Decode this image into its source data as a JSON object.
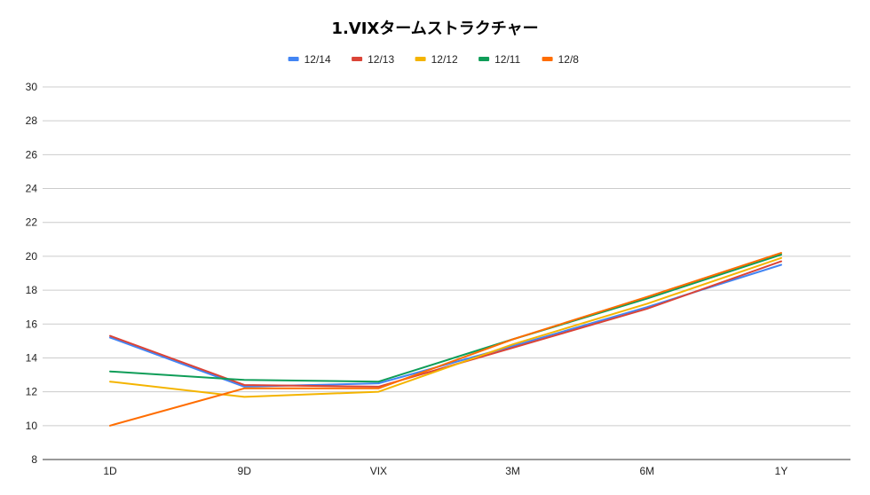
{
  "chart_data": {
    "type": "line",
    "title": "1.VIXタームストラクチャー",
    "xlabel": "",
    "ylabel": "",
    "categories": [
      "1D",
      "9D",
      "VIX",
      "3M",
      "6M",
      "1Y"
    ],
    "ylim": [
      8,
      30
    ],
    "yticks": [
      8,
      10,
      12,
      14,
      16,
      18,
      20,
      22,
      24,
      26,
      28,
      30
    ],
    "grid": true,
    "legend_position": "top",
    "series": [
      {
        "name": "12/14",
        "color": "#4285f4",
        "values": [
          15.2,
          12.3,
          12.5,
          14.7,
          17.0,
          19.5
        ]
      },
      {
        "name": "12/13",
        "color": "#db4437",
        "values": [
          15.3,
          12.4,
          12.3,
          14.6,
          16.9,
          19.7
        ]
      },
      {
        "name": "12/12",
        "color": "#f4b400",
        "values": [
          12.6,
          11.7,
          12.0,
          14.8,
          17.2,
          19.9
        ]
      },
      {
        "name": "12/11",
        "color": "#0f9d58",
        "values": [
          13.2,
          12.7,
          12.6,
          15.1,
          17.5,
          20.1
        ]
      },
      {
        "name": "12/8",
        "color": "#ff6d00",
        "values": [
          10.0,
          12.2,
          12.2,
          15.1,
          17.6,
          20.2
        ]
      }
    ]
  }
}
